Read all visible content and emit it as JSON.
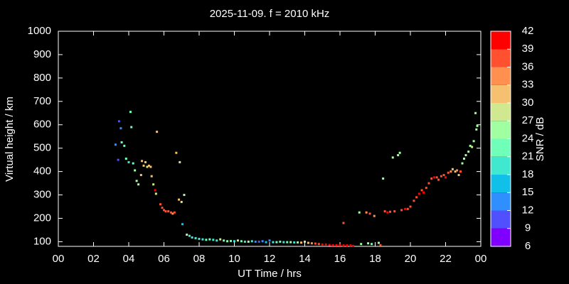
{
  "chart_data": {
    "type": "scatter",
    "title": "2025-11-09. f = 2010 kHz",
    "x_label": "UT Time / hrs",
    "y_label": "Virtual height / km",
    "xlim": [
      0,
      24
    ],
    "ylim": [
      80,
      1000
    ],
    "xticks": [
      {
        "value": 0,
        "label": "00"
      },
      {
        "value": 2,
        "label": "02"
      },
      {
        "value": 4,
        "label": "04"
      },
      {
        "value": 6,
        "label": "06"
      },
      {
        "value": 8,
        "label": "08"
      },
      10,
      12,
      14,
      16,
      18,
      20,
      22,
      {
        "value": 24,
        "label": "00"
      }
    ],
    "yticks": [
      100,
      200,
      300,
      400,
      500,
      600,
      700,
      800,
      900,
      1000
    ],
    "x": [
      3.25,
      3.4,
      3.45,
      3.55,
      3.6,
      3.75,
      3.85,
      4.0,
      4.1,
      4.15,
      4.25,
      4.35,
      4.45,
      4.55,
      4.7,
      4.75,
      4.85,
      4.95,
      5.05,
      5.15,
      5.25,
      5.3,
      5.4,
      5.5,
      5.55,
      5.6,
      5.8,
      5.9,
      6.0,
      6.1,
      6.25,
      6.4,
      6.5,
      6.6,
      6.7,
      6.85,
      6.9,
      7.0,
      7.05,
      7.15,
      7.3,
      7.45,
      7.6,
      7.8,
      8.0,
      8.2,
      8.4,
      8.6,
      8.8,
      9.0,
      9.2,
      9.4,
      9.6,
      9.8,
      10.0,
      10.2,
      10.4,
      10.6,
      10.8,
      11.0,
      11.2,
      11.4,
      11.6,
      11.8,
      12.0,
      12.2,
      12.4,
      12.6,
      12.8,
      13.0,
      13.2,
      13.4,
      13.6,
      13.8,
      14.0,
      14.2,
      14.4,
      14.6,
      14.8,
      15.0,
      15.2,
      15.4,
      15.6,
      15.8,
      16.0,
      16.2,
      16.4,
      16.6,
      16.75,
      16.2,
      17.1,
      17.2,
      17.5,
      17.6,
      17.7,
      17.8,
      17.95,
      18.2,
      18.3,
      18.45,
      18.55,
      18.7,
      18.85,
      19.0,
      19.1,
      19.3,
      19.4,
      19.5,
      19.7,
      19.85,
      20.0,
      20.2,
      20.35,
      20.5,
      20.65,
      20.75,
      20.9,
      21.05,
      21.2,
      21.35,
      21.5,
      21.6,
      21.75,
      21.9,
      22.0,
      22.15,
      22.3,
      22.4,
      22.55,
      22.65,
      22.75,
      22.85,
      22.95,
      23.05,
      23.15,
      23.3,
      23.4,
      23.5,
      23.6,
      23.75,
      23.8,
      23.7
    ],
    "values": [
      515,
      450,
      615,
      585,
      525,
      510,
      455,
      440,
      655,
      590,
      435,
      405,
      360,
      345,
      385,
      445,
      425,
      440,
      420,
      425,
      420,
      380,
      345,
      320,
      305,
      570,
      260,
      245,
      235,
      230,
      230,
      225,
      220,
      225,
      480,
      280,
      440,
      270,
      175,
      300,
      130,
      125,
      118,
      115,
      112,
      110,
      108,
      110,
      108,
      105,
      110,
      105,
      102,
      103,
      102,
      105,
      102,
      100,
      100,
      102,
      100,
      100,
      102,
      98,
      105,
      98,
      98,
      100,
      98,
      98,
      98,
      97,
      97,
      96,
      100,
      95,
      93,
      92,
      90,
      88,
      88,
      86,
      85,
      85,
      85,
      84,
      84,
      84,
      82,
      180,
      225,
      90,
      225,
      93,
      220,
      90,
      210,
      95,
      85,
      370,
      230,
      225,
      228,
      460,
      230,
      470,
      480,
      235,
      240,
      240,
      250,
      275,
      290,
      305,
      320,
      310,
      330,
      350,
      370,
      375,
      375,
      365,
      380,
      385,
      375,
      395,
      400,
      410,
      400,
      405,
      385,
      400,
      435,
      455,
      470,
      485,
      510,
      505,
      530,
      580,
      595,
      650
    ],
    "color_values": [
      12,
      9,
      9,
      12,
      21,
      21,
      21,
      18,
      21,
      21,
      21,
      24,
      24,
      24,
      30,
      30,
      30,
      30,
      27,
      30,
      30,
      30,
      27,
      39,
      27,
      30,
      36,
      36,
      36,
      36,
      36,
      36,
      33,
      36,
      30,
      30,
      27,
      27,
      15,
      24,
      24,
      18,
      18,
      18,
      18,
      18,
      21,
      21,
      18,
      18,
      27,
      21,
      24,
      21,
      18,
      27,
      21,
      18,
      24,
      18,
      12,
      9,
      12,
      15,
      12,
      18,
      21,
      21,
      18,
      21,
      24,
      18,
      24,
      30,
      27,
      30,
      33,
      36,
      36,
      39,
      39,
      39,
      39,
      42,
      42,
      42,
      42,
      39,
      42,
      36,
      24,
      24,
      33,
      24,
      36,
      21,
      33,
      24,
      36,
      24,
      36,
      39,
      36,
      24,
      36,
      24,
      24,
      36,
      39,
      36,
      36,
      36,
      36,
      39,
      36,
      39,
      36,
      36,
      36,
      39,
      36,
      36,
      36,
      36,
      39,
      36,
      33,
      30,
      30,
      33,
      30,
      36,
      24,
      24,
      24,
      24,
      24,
      27,
      24,
      24,
      24,
      24
    ],
    "colorbar": {
      "label": "SNR / dB",
      "lim": [
        6,
        42
      ],
      "ticks": [
        6,
        9,
        12,
        15,
        18,
        21,
        24,
        27,
        30,
        33,
        36,
        39,
        42
      ],
      "colors": [
        "#8000ff",
        "#5050ff",
        "#2f8fff",
        "#10c0e8",
        "#40e8d0",
        "#70ffb8",
        "#a0ffa0",
        "#d0e890",
        "#f5c070",
        "#ff9050",
        "#ff5030",
        "#ff0000"
      ]
    }
  }
}
